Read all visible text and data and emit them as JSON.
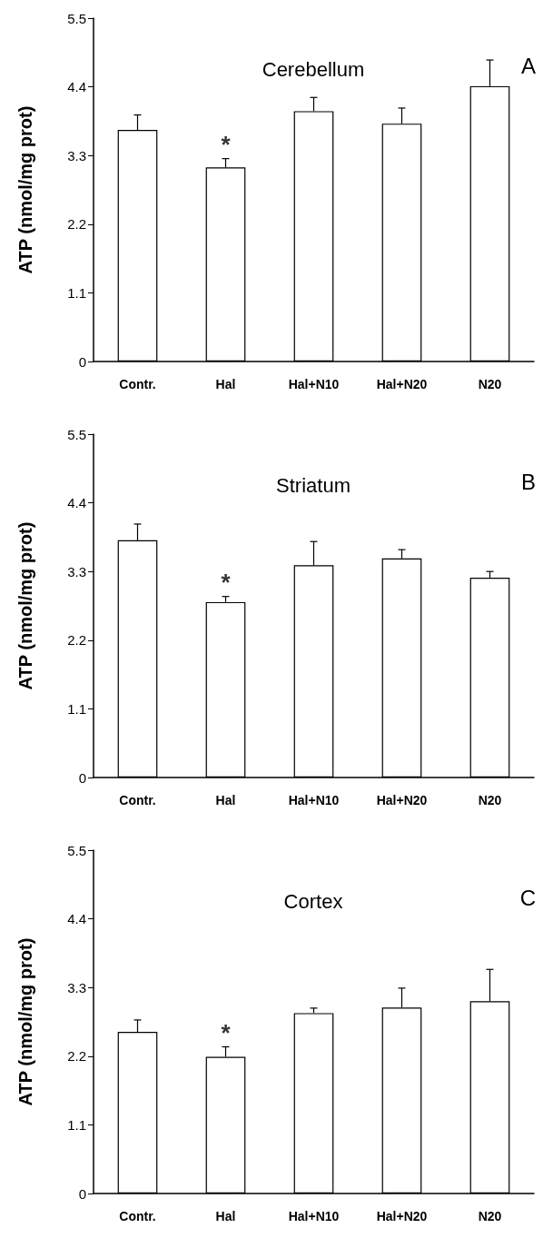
{
  "chart_data": [
    {
      "type": "bar",
      "title": "Cerebellum",
      "ylabel": "ATP (nmol/mg prot)",
      "categories": [
        "Contr.",
        "Hal",
        "Hal+N10",
        "Hal+N20",
        "N20"
      ],
      "color": "#ffffff",
      "values": [
        3.71,
        3.11,
        4.01,
        3.81,
        4.41
      ],
      "errors": [
        [
          3.71,
          3.95
        ],
        [
          3.11,
          3.25
        ],
        [
          4.01,
          4.23
        ],
        [
          3.81,
          4.06
        ],
        [
          4.41,
          4.83
        ]
      ],
      "ylim": [
        0,
        5.5
      ],
      "yticks": [
        0,
        1.1,
        2.2,
        3.3,
        4.4,
        5.5
      ],
      "grid": false,
      "annotations": [
        "*",
        "A"
      ]
    },
    {
      "type": "bar",
      "title": "Striatum",
      "ylabel": "ATP (nmol/mg prot)",
      "categories": [
        "Contr.",
        "Hal",
        "Hal+N10",
        "Hal+N20",
        "N20"
      ],
      "color": "#ffffff",
      "values": [
        3.8,
        2.81,
        3.4,
        3.51,
        3.2
      ],
      "errors": [
        [
          3.8,
          4.06
        ],
        [
          2.81,
          2.9
        ],
        [
          3.4,
          3.78
        ],
        [
          3.51,
          3.65
        ],
        [
          3.2,
          3.3
        ]
      ],
      "ylim": [
        0,
        5.5
      ],
      "yticks": [
        0,
        1.1,
        2.2,
        3.3,
        4.4,
        5.5
      ],
      "grid": false,
      "annotations": [
        "*",
        "B"
      ]
    },
    {
      "type": "bar",
      "title": "Cortex",
      "ylabel": "ATP (nmol/mg prot)",
      "categories": [
        "Contr.",
        "Hal",
        "Hal+N10",
        "Hal+N20",
        "N20"
      ],
      "color": "#ffffff",
      "values": [
        2.59,
        2.19,
        2.89,
        2.98,
        3.08
      ],
      "errors": [
        [
          2.59,
          2.78
        ],
        [
          2.19,
          2.35
        ],
        [
          2.89,
          2.97
        ],
        [
          2.98,
          3.29
        ],
        [
          3.08,
          3.59
        ]
      ],
      "ylim": [
        0,
        5.5
      ],
      "yticks": [
        0,
        1.1,
        2.2,
        3.3,
        4.4,
        5.5
      ],
      "grid": false,
      "annotations": [
        "*",
        "C"
      ]
    }
  ]
}
